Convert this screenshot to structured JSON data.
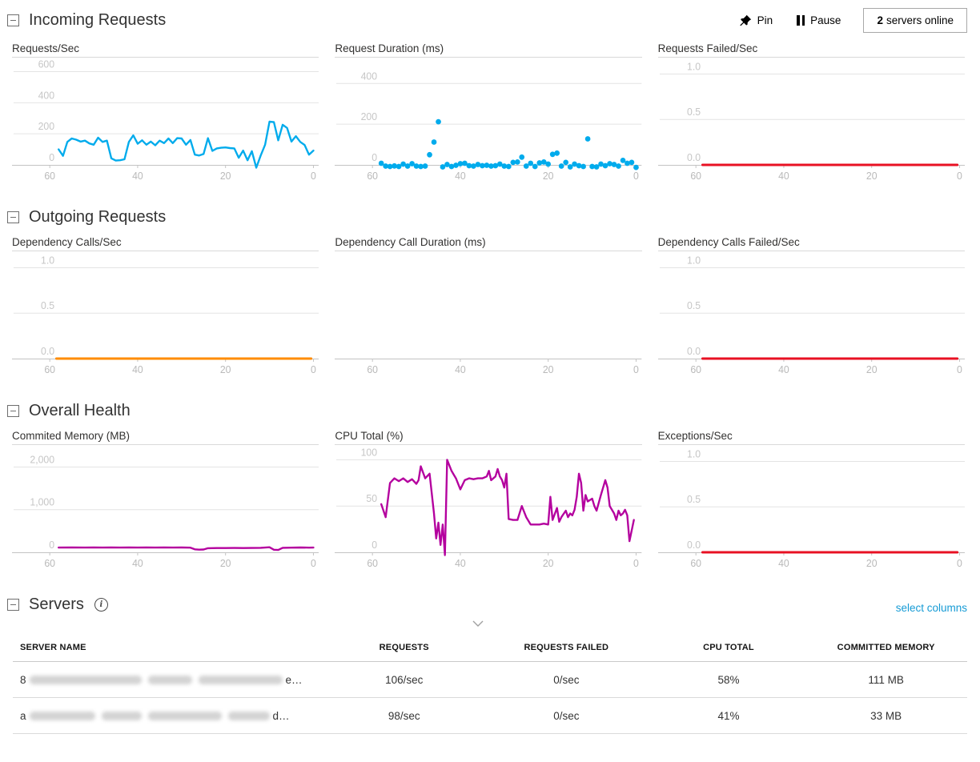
{
  "toolbar": {
    "pin_label": "Pin",
    "pause_label": "Pause",
    "servers_online_count": "2",
    "servers_online_label": "servers online"
  },
  "sections": [
    {
      "title": "Incoming Requests"
    },
    {
      "title": "Outgoing Requests"
    },
    {
      "title": "Overall Health"
    }
  ],
  "servers": {
    "title": "Servers",
    "select_columns_label": "select columns",
    "columns": [
      "SERVER NAME",
      "REQUESTS",
      "REQUESTS FAILED",
      "CPU TOTAL",
      "COMMITTED MEMORY"
    ],
    "sorted_column": "REQUESTS",
    "rows": [
      {
        "name_prefix": "8",
        "name_suffix": "e…",
        "blur_segments": [
          140,
          55,
          105
        ],
        "requests": "106/sec",
        "requests_failed": "0/sec",
        "cpu_total": "58%",
        "committed_memory": "111 MB"
      },
      {
        "name_prefix": "a",
        "name_suffix": "d…",
        "blur_segments": [
          82,
          50,
          92,
          52
        ],
        "requests": "98/sec",
        "requests_failed": "0/sec",
        "cpu_total": "41%",
        "committed_memory": "33 MB"
      }
    ]
  },
  "chart_data": [
    {
      "section": 0,
      "type": "line",
      "title": "Requests/Sec",
      "color": "#00abec",
      "xlabel": "",
      "ylabel": "",
      "xticks": [
        60,
        40,
        20,
        0
      ],
      "yticks": [
        600,
        400,
        200,
        0
      ],
      "ytick_labels": [
        "600",
        "400",
        "200",
        "0"
      ],
      "ylim": [
        0,
        690
      ],
      "points": [
        [
          58,
          100
        ],
        [
          57,
          58
        ],
        [
          56,
          148
        ],
        [
          55,
          170
        ],
        [
          54,
          162
        ],
        [
          53,
          150
        ],
        [
          52,
          156
        ],
        [
          51,
          138
        ],
        [
          50,
          130
        ],
        [
          49,
          175
        ],
        [
          48,
          148
        ],
        [
          47,
          156
        ],
        [
          46,
          42
        ],
        [
          45,
          28
        ],
        [
          44,
          30
        ],
        [
          43,
          36
        ],
        [
          42,
          148
        ],
        [
          41,
          190
        ],
        [
          40,
          136
        ],
        [
          39,
          158
        ],
        [
          38,
          130
        ],
        [
          37,
          150
        ],
        [
          36,
          126
        ],
        [
          35,
          156
        ],
        [
          34,
          140
        ],
        [
          33,
          170
        ],
        [
          32,
          140
        ],
        [
          31,
          172
        ],
        [
          30,
          170
        ],
        [
          29,
          130
        ],
        [
          28,
          160
        ],
        [
          27,
          66
        ],
        [
          26,
          60
        ],
        [
          25,
          70
        ],
        [
          24,
          172
        ],
        [
          23,
          90
        ],
        [
          22,
          106
        ],
        [
          21,
          110
        ],
        [
          20,
          112
        ],
        [
          19,
          108
        ],
        [
          18,
          106
        ],
        [
          17,
          46
        ],
        [
          16,
          92
        ],
        [
          15,
          30
        ],
        [
          14,
          88
        ],
        [
          13,
          -18
        ],
        [
          12,
          60
        ],
        [
          11,
          130
        ],
        [
          10,
          278
        ],
        [
          9,
          275
        ],
        [
          8,
          158
        ],
        [
          7,
          258
        ],
        [
          6,
          238
        ],
        [
          5,
          150
        ],
        [
          4,
          185
        ],
        [
          3,
          148
        ],
        [
          2,
          128
        ],
        [
          1,
          66
        ],
        [
          0,
          92
        ]
      ]
    },
    {
      "section": 0,
      "type": "scatter",
      "title": "Request Duration (ms)",
      "color": "#00abec",
      "xlabel": "",
      "ylabel": "",
      "xticks": [
        60,
        40,
        20,
        0
      ],
      "yticks": [
        400,
        200,
        0
      ],
      "ytick_labels": [
        "400",
        "200",
        "0"
      ],
      "ylim": [
        0,
        527
      ],
      "points": [
        [
          58,
          8
        ],
        [
          57,
          -6
        ],
        [
          56,
          -8
        ],
        [
          55,
          -5
        ],
        [
          54,
          -8
        ],
        [
          53,
          4
        ],
        [
          52,
          -6
        ],
        [
          51,
          6
        ],
        [
          50,
          -6
        ],
        [
          49,
          -8
        ],
        [
          48,
          -6
        ],
        [
          47,
          50
        ],
        [
          46,
          112
        ],
        [
          45,
          212
        ],
        [
          44,
          -10
        ],
        [
          43,
          2
        ],
        [
          42,
          -8
        ],
        [
          41,
          -2
        ],
        [
          40,
          6
        ],
        [
          39,
          8
        ],
        [
          38,
          -4
        ],
        [
          37,
          -6
        ],
        [
          36,
          2
        ],
        [
          35,
          -4
        ],
        [
          34,
          -2
        ],
        [
          33,
          -6
        ],
        [
          32,
          -4
        ],
        [
          31,
          4
        ],
        [
          30,
          -6
        ],
        [
          29,
          -8
        ],
        [
          28,
          12
        ],
        [
          27,
          14
        ],
        [
          26,
          38
        ],
        [
          25,
          -6
        ],
        [
          24,
          8
        ],
        [
          23,
          -8
        ],
        [
          22,
          10
        ],
        [
          21,
          14
        ],
        [
          20,
          4
        ],
        [
          19,
          52
        ],
        [
          18,
          58
        ],
        [
          17,
          -6
        ],
        [
          16,
          12
        ],
        [
          15,
          -10
        ],
        [
          14,
          4
        ],
        [
          13,
          -4
        ],
        [
          12,
          -8
        ],
        [
          11,
          128
        ],
        [
          10,
          -8
        ],
        [
          9,
          -10
        ],
        [
          8,
          4
        ],
        [
          7,
          -4
        ],
        [
          6,
          6
        ],
        [
          5,
          2
        ],
        [
          4,
          -6
        ],
        [
          3,
          22
        ],
        [
          2,
          8
        ],
        [
          1,
          12
        ],
        [
          0,
          -12
        ]
      ]
    },
    {
      "section": 0,
      "type": "line",
      "title": "Requests Failed/Sec",
      "color": "#e81123",
      "xlabel": "",
      "ylabel": "",
      "xticks": [
        60,
        40,
        20,
        0
      ],
      "yticks": [
        1.0,
        0.5,
        0
      ],
      "ytick_labels": [
        "1.0",
        "0.5",
        "0.0"
      ],
      "ylim": [
        0,
        1.18
      ],
      "points": [
        [
          58.5,
          0
        ],
        [
          0.5,
          0
        ]
      ]
    },
    {
      "section": 1,
      "type": "line",
      "title": "Dependency Calls/Sec",
      "color": "#ff8c00",
      "xlabel": "",
      "ylabel": "",
      "xticks": [
        60,
        40,
        20,
        0
      ],
      "yticks": [
        1.0,
        0.5,
        0
      ],
      "ytick_labels": [
        "1.0",
        "0.5",
        "0.0"
      ],
      "ylim": [
        0,
        1.18
      ],
      "points": [
        [
          58.5,
          0
        ],
        [
          0.5,
          0
        ]
      ]
    },
    {
      "section": 1,
      "type": "scatter",
      "title": "Dependency Call Duration (ms)",
      "color": "#00abec",
      "xlabel": "",
      "ylabel": "",
      "xticks": [
        60,
        40,
        20,
        0
      ],
      "yticks": [],
      "ytick_labels": [],
      "ylim": [
        0,
        1
      ],
      "points": []
    },
    {
      "section": 1,
      "type": "line",
      "title": "Dependency Calls Failed/Sec",
      "color": "#e81123",
      "xlabel": "",
      "ylabel": "",
      "xticks": [
        60,
        40,
        20,
        0
      ],
      "yticks": [
        1.0,
        0.5,
        0
      ],
      "ytick_labels": [
        "1.0",
        "0.5",
        "0.0"
      ],
      "ylim": [
        0,
        1.18
      ],
      "points": [
        [
          58.5,
          0
        ],
        [
          0.5,
          0
        ]
      ]
    },
    {
      "section": 2,
      "type": "line",
      "title": "Commited Memory (MB)",
      "color": "#b4009e",
      "xlabel": "",
      "ylabel": "",
      "xticks": [
        60,
        40,
        20,
        0
      ],
      "yticks": [
        2000,
        1000,
        0
      ],
      "ytick_labels": [
        "2,000",
        "1,000",
        "0"
      ],
      "ylim": [
        0,
        2515
      ],
      "points": [
        [
          58,
          110
        ],
        [
          55,
          112
        ],
        [
          52,
          110
        ],
        [
          50,
          112
        ],
        [
          48,
          110
        ],
        [
          46,
          112
        ],
        [
          44,
          110
        ],
        [
          42,
          112
        ],
        [
          40,
          110
        ],
        [
          38,
          112
        ],
        [
          36,
          110
        ],
        [
          34,
          112
        ],
        [
          32,
          110
        ],
        [
          30,
          112
        ],
        [
          28,
          108
        ],
        [
          27,
          70
        ],
        [
          26,
          62
        ],
        [
          25,
          66
        ],
        [
          24,
          95
        ],
        [
          22,
          100
        ],
        [
          20,
          100
        ],
        [
          18,
          102
        ],
        [
          16,
          100
        ],
        [
          14,
          102
        ],
        [
          12,
          105
        ],
        [
          10,
          118
        ],
        [
          9,
          60
        ],
        [
          8,
          55
        ],
        [
          7,
          105
        ],
        [
          5,
          108
        ],
        [
          3,
          112
        ],
        [
          1,
          108
        ],
        [
          0,
          110
        ]
      ]
    },
    {
      "section": 2,
      "type": "line",
      "title": "CPU Total (%)",
      "color": "#b4009e",
      "xlabel": "",
      "ylabel": "",
      "xticks": [
        60,
        40,
        20,
        0
      ],
      "yticks": [
        100,
        50,
        0
      ],
      "ytick_labels": [
        "100",
        "50",
        "0"
      ],
      "ylim": [
        0,
        116
      ],
      "points": [
        [
          58,
          52
        ],
        [
          57,
          38
        ],
        [
          56,
          75
        ],
        [
          55,
          80
        ],
        [
          54,
          77
        ],
        [
          53,
          80
        ],
        [
          52,
          76
        ],
        [
          51,
          79
        ],
        [
          50,
          74
        ],
        [
          49.5,
          78
        ],
        [
          49,
          93
        ],
        [
          48,
          80
        ],
        [
          47,
          85
        ],
        [
          46,
          42
        ],
        [
          45.5,
          15
        ],
        [
          45,
          32
        ],
        [
          44.5,
          8
        ],
        [
          44,
          30
        ],
        [
          43.5,
          -3
        ],
        [
          43,
          100
        ],
        [
          42,
          88
        ],
        [
          41.5,
          84
        ],
        [
          41,
          80
        ],
        [
          40,
          68
        ],
        [
          39,
          78
        ],
        [
          38,
          80
        ],
        [
          37,
          79
        ],
        [
          36,
          80
        ],
        [
          35,
          80
        ],
        [
          34,
          82
        ],
        [
          33.5,
          88
        ],
        [
          33,
          78
        ],
        [
          32,
          82
        ],
        [
          31.5,
          90
        ],
        [
          31,
          82
        ],
        [
          30.5,
          78
        ],
        [
          30,
          70
        ],
        [
          29.5,
          85
        ],
        [
          29,
          36
        ],
        [
          28,
          35
        ],
        [
          27,
          35
        ],
        [
          26,
          50
        ],
        [
          25,
          38
        ],
        [
          24,
          30
        ],
        [
          23,
          30
        ],
        [
          22,
          30
        ],
        [
          21,
          31
        ],
        [
          20,
          30
        ],
        [
          19.5,
          60
        ],
        [
          19,
          35
        ],
        [
          18,
          48
        ],
        [
          17.5,
          33
        ],
        [
          17,
          38
        ],
        [
          16,
          45
        ],
        [
          15.5,
          38
        ],
        [
          15,
          42
        ],
        [
          14.5,
          40
        ],
        [
          14,
          46
        ],
        [
          13.5,
          60
        ],
        [
          13,
          85
        ],
        [
          12.5,
          75
        ],
        [
          12,
          45
        ],
        [
          11.5,
          62
        ],
        [
          11,
          55
        ],
        [
          10,
          58
        ],
        [
          9.5,
          50
        ],
        [
          9,
          45
        ],
        [
          8,
          62
        ],
        [
          7,
          78
        ],
        [
          6.5,
          70
        ],
        [
          6,
          50
        ],
        [
          5,
          42
        ],
        [
          4.5,
          35
        ],
        [
          4,
          45
        ],
        [
          3.5,
          40
        ],
        [
          3,
          42
        ],
        [
          2.5,
          46
        ],
        [
          2,
          40
        ],
        [
          1.5,
          12
        ],
        [
          0.5,
          35
        ]
      ]
    },
    {
      "section": 2,
      "type": "line",
      "title": "Exceptions/Sec",
      "color": "#e81123",
      "xlabel": "",
      "ylabel": "",
      "xticks": [
        60,
        40,
        20,
        0
      ],
      "yticks": [
        1.0,
        0.5,
        0
      ],
      "ytick_labels": [
        "1.0",
        "0.5",
        "0.0"
      ],
      "ylim": [
        0,
        1.18
      ],
      "points": [
        [
          58.5,
          0
        ],
        [
          0.5,
          0
        ]
      ]
    }
  ]
}
